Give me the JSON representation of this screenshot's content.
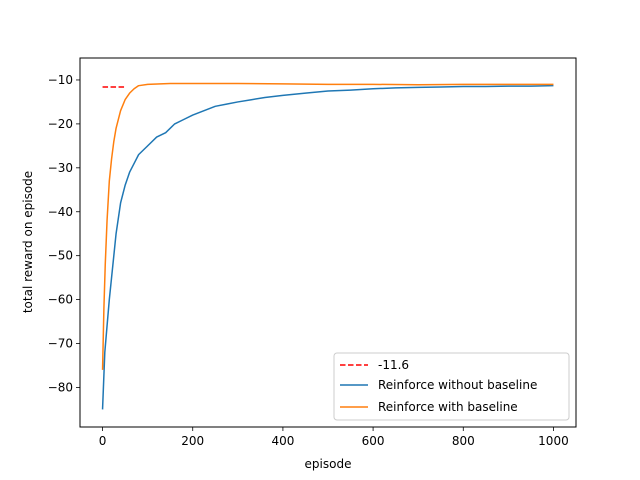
{
  "chart_data": {
    "type": "line",
    "title": "",
    "xlabel": "episode",
    "ylabel": "total reward on episode",
    "xlim": [
      -50,
      1050
    ],
    "ylim": [
      -89,
      -5
    ],
    "xticks": [
      0,
      200,
      400,
      600,
      800,
      1000
    ],
    "xtick_labels": [
      "0",
      "200",
      "400",
      "600",
      "800",
      "1000"
    ],
    "yticks": [
      -80,
      -70,
      -60,
      -50,
      -40,
      -30,
      -20,
      -10
    ],
    "ytick_labels": [
      "−80",
      "−70",
      "−60",
      "−50",
      "−40",
      "−30",
      "−20",
      "−10"
    ],
    "grid": false,
    "legend_position": "lower-right",
    "series": [
      {
        "name": "-11.6",
        "style": "dashed",
        "color": "#ff0000",
        "x": [
          0,
          50
        ],
        "y": [
          -11.6,
          -11.6
        ]
      },
      {
        "name": "Reinforce without baseline",
        "style": "solid",
        "color": "#1f77b4",
        "x": [
          0,
          5,
          10,
          15,
          20,
          25,
          30,
          40,
          50,
          60,
          70,
          80,
          90,
          100,
          120,
          140,
          160,
          180,
          200,
          225,
          250,
          275,
          300,
          330,
          360,
          400,
          450,
          500,
          550,
          600,
          650,
          700,
          750,
          800,
          850,
          900,
          950,
          1000
        ],
        "y": [
          -85,
          -72,
          -66,
          -60,
          -55,
          -50,
          -45,
          -38,
          -34,
          -31,
          -29,
          -27,
          -26,
          -25,
          -23,
          -22,
          -20,
          -19,
          -18,
          -17,
          -16,
          -15.5,
          -15,
          -14.5,
          -14,
          -13.5,
          -13,
          -12.5,
          -12.3,
          -12,
          -11.8,
          -11.7,
          -11.6,
          -11.5,
          -11.5,
          -11.4,
          -11.4,
          -11.3
        ]
      },
      {
        "name": "Reinforce with baseline",
        "style": "solid",
        "color": "#ff7f0e",
        "x": [
          0,
          3,
          6,
          10,
          15,
          20,
          25,
          30,
          40,
          50,
          60,
          70,
          80,
          100,
          150,
          200,
          300,
          400,
          500,
          600,
          700,
          800,
          900,
          1000
        ],
        "y": [
          -76,
          -62,
          -52,
          -42,
          -33,
          -28,
          -24,
          -21,
          -17,
          -14.5,
          -13,
          -12,
          -11.3,
          -11,
          -10.8,
          -10.8,
          -10.8,
          -10.9,
          -11,
          -11,
          -11.1,
          -11,
          -11,
          -11
        ]
      }
    ]
  }
}
